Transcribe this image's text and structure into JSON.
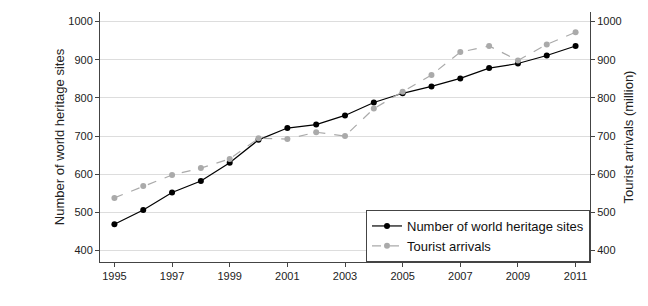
{
  "chart_data": {
    "type": "line",
    "x": [
      1995,
      1996,
      1997,
      1998,
      1999,
      2000,
      2001,
      2002,
      2003,
      2004,
      2005,
      2006,
      2007,
      2008,
      2009,
      2010,
      2011
    ],
    "series": [
      {
        "name": "Number of world heritage sites",
        "color": "#000000",
        "marker": "circle",
        "line_style": "solid",
        "values": [
          469,
          506,
          552,
          582,
          630,
          690,
          721,
          730,
          754,
          788,
          812,
          830,
          851,
          878,
          890,
          911,
          936
        ]
      },
      {
        "name": "Tourist arrivals",
        "color": "#aaaaaa",
        "marker": "circle",
        "line_style": "dash",
        "axis": "y2",
        "values": [
          538,
          569,
          598,
          616,
          640,
          694,
          692,
          710,
          700,
          772,
          816,
          860,
          920,
          936,
          898,
          940,
          972
        ]
      }
    ],
    "ylabel": "Number of world heritage sites",
    "y2label": "Tourist arrivals (million)",
    "xlim": [
      1994.5,
      2011.5
    ],
    "xticks": [
      1995,
      1997,
      1999,
      2001,
      2003,
      2005,
      2007,
      2009,
      2011
    ],
    "ylim": [
      370,
      1025
    ],
    "yticks": [
      400,
      500,
      600,
      700,
      800,
      900,
      1000
    ],
    "y2lim": [
      370,
      1025
    ],
    "y2ticks": [
      400,
      500,
      600,
      700,
      800,
      900,
      1000
    ],
    "grid": true,
    "legend": "lower right"
  }
}
